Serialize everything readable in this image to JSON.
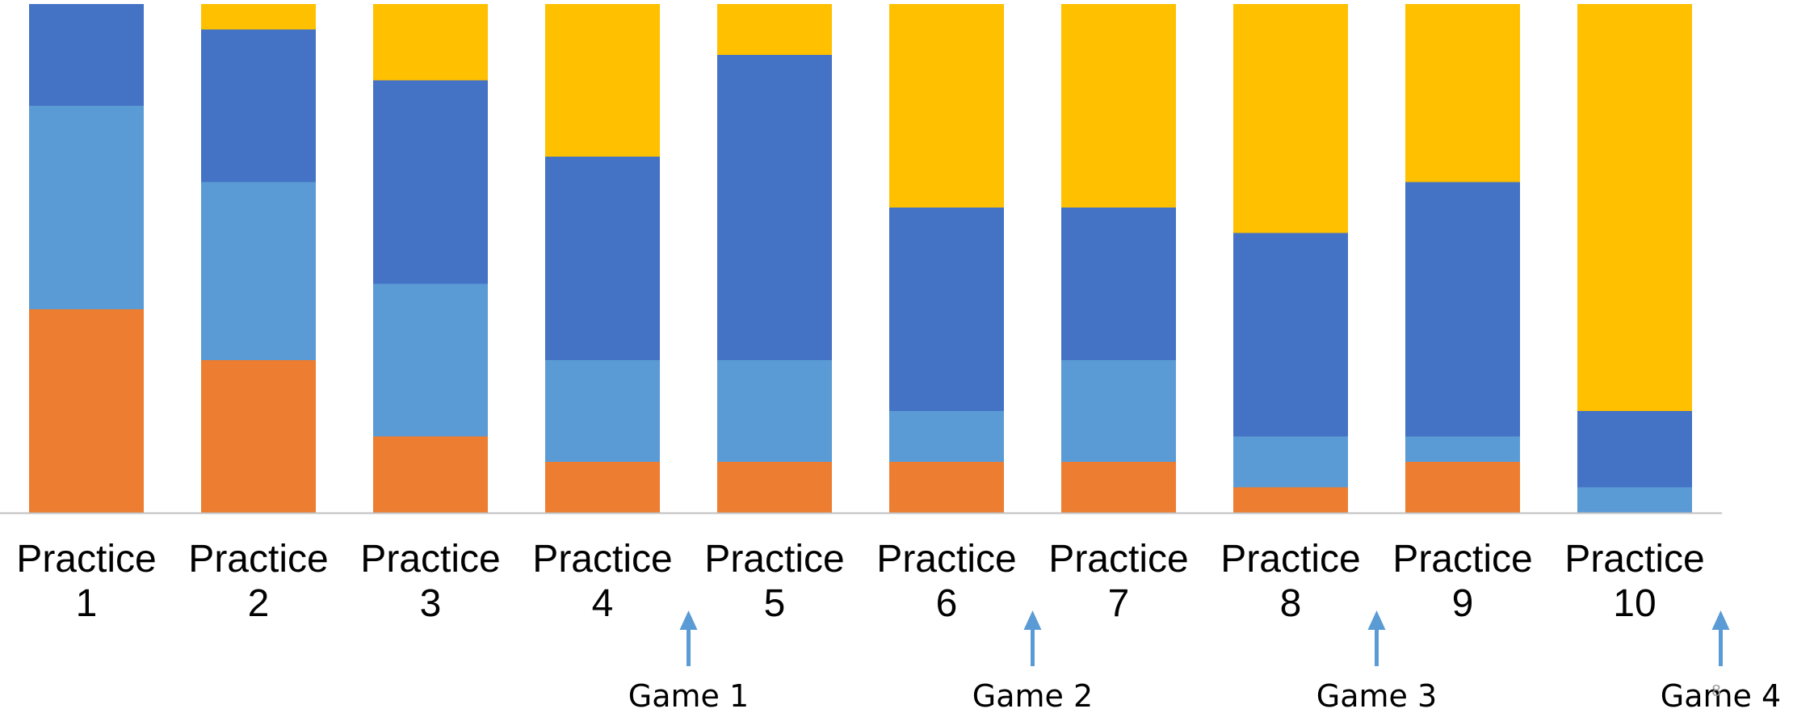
{
  "chart_data": {
    "type": "bar",
    "stacked": true,
    "normalized": true,
    "categories": [
      [
        "Practice",
        "1"
      ],
      [
        "Practice",
        "2"
      ],
      [
        "Practice",
        "3"
      ],
      [
        "Practice",
        "4"
      ],
      [
        "Practice",
        "5"
      ],
      [
        "Practice",
        "6"
      ],
      [
        "Practice",
        "7"
      ],
      [
        "Practice",
        "8"
      ],
      [
        "Practice",
        "9"
      ],
      [
        "Practice",
        "10"
      ]
    ],
    "series": [
      {
        "color": "#ED7D31",
        "values": [
          40,
          30,
          15,
          10,
          10,
          10,
          10,
          5,
          10,
          0
        ]
      },
      {
        "color": "#5B9BD5",
        "values": [
          40,
          35,
          30,
          20,
          20,
          10,
          20,
          10,
          5,
          5
        ]
      },
      {
        "color": "#4472C4",
        "values": [
          20,
          30,
          40,
          40,
          60,
          40,
          30,
          40,
          50,
          15
        ]
      },
      {
        "color": "#FFC000",
        "values": [
          0,
          5,
          15,
          30,
          10,
          40,
          40,
          45,
          35,
          80
        ]
      }
    ],
    "ylim": [
      0,
      100
    ],
    "legend": "none",
    "grid": false,
    "annotations": [
      {
        "label": "Game 1",
        "after_category": 4,
        "arrow_color": "#5B9BD5"
      },
      {
        "label": "Game 2",
        "after_category": 6,
        "arrow_color": "#5B9BD5"
      },
      {
        "label": "Game 3",
        "after_category": 8,
        "arrow_color": "#5B9BD5"
      },
      {
        "label": "Game 4",
        "after_category": 10,
        "arrow_color": "#5B9BD5"
      }
    ],
    "axis_color": "#BFBFBF"
  },
  "slide_number": "8"
}
